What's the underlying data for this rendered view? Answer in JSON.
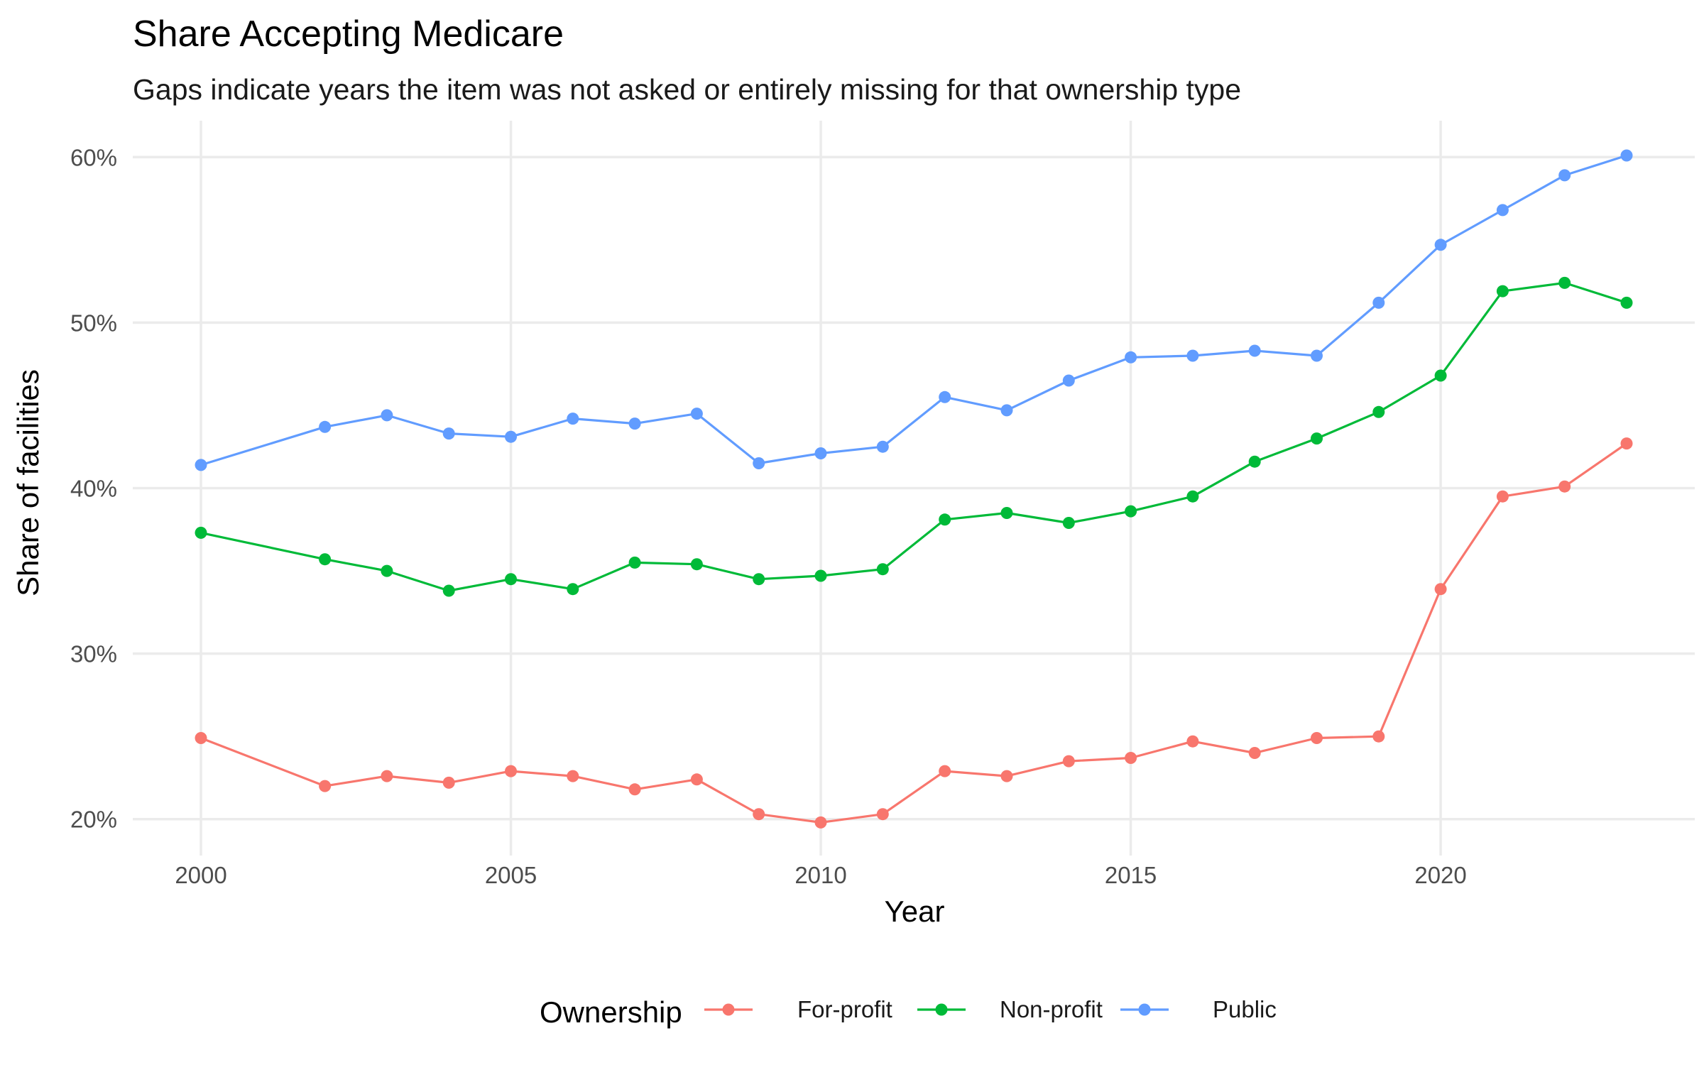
{
  "chart_data": {
    "type": "line",
    "title": "Share Accepting Medicare",
    "subtitle": "Gaps indicate years the item was not asked or entirely missing for that ownership type",
    "xlabel": "Year",
    "ylabel": "Share of facilities",
    "xlim": [
      1998.9,
      2024.1
    ],
    "ylim": [
      0.178,
      0.622
    ],
    "x_ticks": [
      2000,
      2005,
      2010,
      2015,
      2020
    ],
    "x_tick_labels": [
      "2000",
      "2005",
      "2010",
      "2015",
      "2020"
    ],
    "y_ticks": [
      0.2,
      0.3,
      0.4,
      0.5,
      0.6
    ],
    "y_tick_labels": [
      "20%",
      "30%",
      "40%",
      "50%",
      "60%"
    ],
    "grid": true,
    "legend": {
      "title": "Ownership",
      "position": "bottom"
    },
    "series": [
      {
        "name": "For-profit",
        "color": "#F8766D",
        "points": [
          [
            2000,
            0.249
          ],
          [
            2002,
            0.22
          ],
          [
            2003,
            0.226
          ],
          [
            2004,
            0.222
          ],
          [
            2005,
            0.229
          ],
          [
            2006,
            0.226
          ],
          [
            2007,
            0.218
          ],
          [
            2008,
            0.224
          ],
          [
            2009,
            0.203
          ],
          [
            2010,
            0.198
          ],
          [
            2011,
            0.203
          ],
          [
            2012,
            0.229
          ],
          [
            2013,
            0.226
          ],
          [
            2014,
            0.235
          ],
          [
            2015,
            0.237
          ],
          [
            2016,
            0.247
          ],
          [
            2017,
            0.24
          ],
          [
            2018,
            0.249
          ],
          [
            2019,
            0.25
          ],
          [
            2020,
            0.339
          ],
          [
            2021,
            0.395
          ],
          [
            2022,
            0.401
          ],
          [
            2023,
            0.427
          ]
        ]
      },
      {
        "name": "Non-profit",
        "color": "#00BA38",
        "points": [
          [
            2000,
            0.373
          ],
          [
            2002,
            0.357
          ],
          [
            2003,
            0.35
          ],
          [
            2004,
            0.338
          ],
          [
            2005,
            0.345
          ],
          [
            2006,
            0.339
          ],
          [
            2007,
            0.355
          ],
          [
            2008,
            0.354
          ],
          [
            2009,
            0.345
          ],
          [
            2010,
            0.347
          ],
          [
            2011,
            0.351
          ],
          [
            2012,
            0.381
          ],
          [
            2013,
            0.385
          ],
          [
            2014,
            0.379
          ],
          [
            2015,
            0.386
          ],
          [
            2016,
            0.395
          ],
          [
            2017,
            0.416
          ],
          [
            2018,
            0.43
          ],
          [
            2019,
            0.446
          ],
          [
            2020,
            0.468
          ],
          [
            2021,
            0.519
          ],
          [
            2022,
            0.524
          ],
          [
            2023,
            0.512
          ]
        ]
      },
      {
        "name": "Public",
        "color": "#619CFF",
        "points": [
          [
            2000,
            0.414
          ],
          [
            2002,
            0.437
          ],
          [
            2003,
            0.444
          ],
          [
            2004,
            0.433
          ],
          [
            2005,
            0.431
          ],
          [
            2006,
            0.442
          ],
          [
            2007,
            0.439
          ],
          [
            2008,
            0.445
          ],
          [
            2009,
            0.415
          ],
          [
            2010,
            0.421
          ],
          [
            2011,
            0.425
          ],
          [
            2012,
            0.455
          ],
          [
            2013,
            0.447
          ],
          [
            2014,
            0.465
          ],
          [
            2015,
            0.479
          ],
          [
            2016,
            0.48
          ],
          [
            2017,
            0.483
          ],
          [
            2018,
            0.48
          ],
          [
            2019,
            0.512
          ],
          [
            2020,
            0.547
          ],
          [
            2021,
            0.568
          ],
          [
            2022,
            0.589
          ],
          [
            2023,
            0.601
          ]
        ]
      }
    ]
  }
}
